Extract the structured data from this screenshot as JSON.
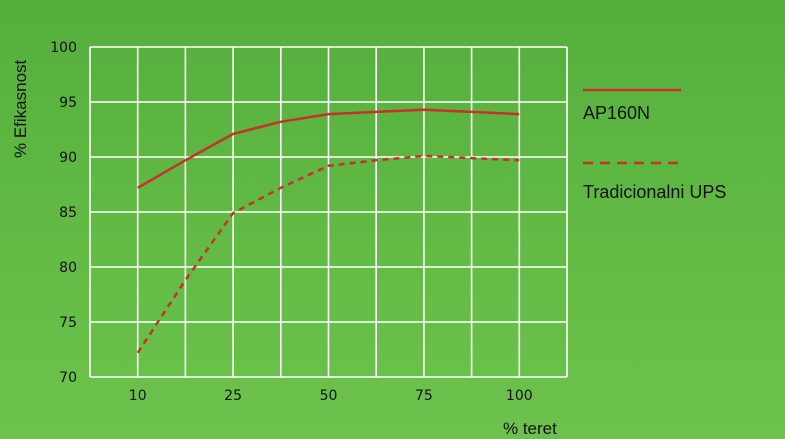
{
  "chart_data": {
    "type": "line",
    "title": "",
    "xlabel": "% teret",
    "ylabel": "% Efikasnost",
    "categories": [
      "10",
      "25",
      "50",
      "75",
      "100"
    ],
    "ylim": [
      70,
      100
    ],
    "yticks": [
      70,
      75,
      80,
      85,
      90,
      95,
      100
    ],
    "grid": true,
    "legend_position": "right",
    "series": [
      {
        "name": "AP160N",
        "style": "solid",
        "color": "#c8302a",
        "points": [
          [
            0,
            87.2
          ],
          [
            0.5,
            89.7
          ],
          [
            1,
            92.1
          ],
          [
            1.5,
            93.2
          ],
          [
            2,
            93.9
          ],
          [
            2.5,
            94.1
          ],
          [
            3,
            94.3
          ],
          [
            3.5,
            94.1
          ],
          [
            4,
            93.9
          ]
        ]
      },
      {
        "name": "Tradicionalni UPS",
        "style": "dashed",
        "color": "#c8302a",
        "points": [
          [
            0,
            72.2
          ],
          [
            0.5,
            78.8
          ],
          [
            1,
            84.9
          ],
          [
            1.5,
            87.2
          ],
          [
            2,
            89.2
          ],
          [
            2.5,
            89.7
          ],
          [
            3,
            90.1
          ],
          [
            3.5,
            89.9
          ],
          [
            4,
            89.7
          ]
        ]
      }
    ]
  },
  "colors": {
    "background_top": "#55ad3c",
    "background_bottom": "#6cc24c",
    "grid": "#ffffff",
    "series": "#c8302a",
    "text": "#111111"
  }
}
